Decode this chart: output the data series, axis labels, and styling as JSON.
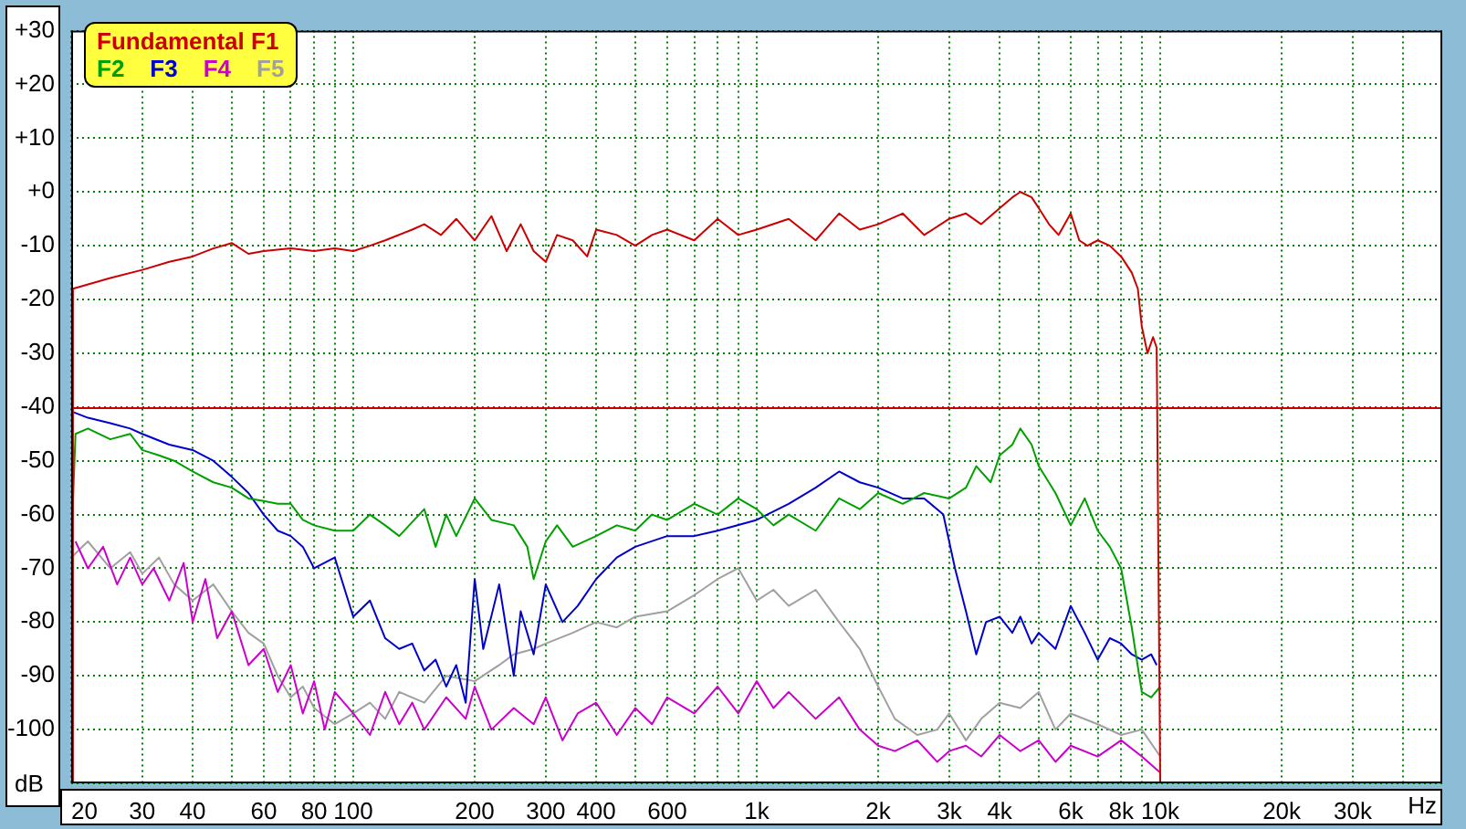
{
  "chart_data": {
    "type": "line",
    "xlabel": "Hz",
    "ylabel": "dB",
    "log": "x",
    "xlim": [
      20,
      50000
    ],
    "ylim": [
      -110,
      30
    ],
    "xticks": [
      20,
      30,
      40,
      {
        "value": 50,
        "label": null
      },
      60,
      {
        "value": 70,
        "label": null
      },
      80,
      {
        "value": 90,
        "label": null
      },
      100,
      200,
      300,
      400,
      {
        "value": 500,
        "label": null
      },
      600,
      {
        "value": 700,
        "label": null
      },
      {
        "value": 800,
        "label": null
      },
      {
        "value": 900,
        "label": null
      },
      {
        "value": 1000,
        "label": "1k"
      },
      {
        "value": 2000,
        "label": "2k"
      },
      {
        "value": 3000,
        "label": "3k"
      },
      {
        "value": 4000,
        "label": "4k"
      },
      {
        "value": 5000,
        "label": null
      },
      {
        "value": 6000,
        "label": "6k"
      },
      {
        "value": 7000,
        "label": null
      },
      {
        "value": 8000,
        "label": "8k"
      },
      {
        "value": 9000,
        "label": null
      },
      {
        "value": 10000,
        "label": "10k"
      },
      {
        "value": 20000,
        "label": "20k"
      },
      {
        "value": 30000,
        "label": "30k"
      },
      {
        "value": 40000,
        "label": null
      }
    ],
    "yticks": [
      {
        "value": 30,
        "label": "+30"
      },
      {
        "value": 20,
        "label": "+20"
      },
      {
        "value": 10,
        "label": "+10"
      },
      {
        "value": 0,
        "label": "+0"
      },
      -10,
      -20,
      -30,
      -40,
      -50,
      -60,
      -70,
      -80,
      -90,
      -100,
      {
        "value": -110,
        "label": null
      }
    ],
    "grid": true,
    "legend": "top left",
    "marker": "none",
    "line_style": "solid",
    "ref_lines": [
      {
        "axis": "y",
        "value": -40,
        "color": "#cc0000"
      }
    ],
    "series": [
      {
        "name": "Fundamental F1",
        "color": "#cc0000",
        "x": [
          20,
          20.2,
          25,
          30,
          35,
          40,
          45,
          50,
          55,
          60,
          70,
          80,
          90,
          100,
          110,
          120,
          140,
          150,
          165,
          180,
          200,
          220,
          240,
          260,
          280,
          300,
          320,
          350,
          380,
          400,
          450,
          500,
          550,
          600,
          700,
          800,
          900,
          1000,
          1200,
          1400,
          1600,
          1800,
          2000,
          2300,
          2600,
          3000,
          3300,
          3600,
          4000,
          4300,
          4500,
          4800,
          5000,
          5300,
          5600,
          6000,
          6300,
          6600,
          7000,
          7500,
          8000,
          8500,
          8800,
          9000,
          9300,
          9600,
          9800,
          10000
        ],
        "values": [
          -110,
          -18,
          -16,
          -14.5,
          -13,
          -12,
          -10.5,
          -9.5,
          -11.5,
          -11,
          -10.5,
          -11,
          -10.5,
          -11,
          -10,
          -9,
          -7,
          -6,
          -8,
          -5,
          -9,
          -4.5,
          -11,
          -6,
          -11,
          -13,
          -8,
          -9,
          -12,
          -7,
          -8,
          -10,
          -8,
          -7,
          -9,
          -5,
          -8,
          -7,
          -5,
          -9,
          -4,
          -7,
          -6,
          -4,
          -8,
          -5,
          -4,
          -6,
          -3,
          -1,
          0,
          -1,
          -3,
          -6,
          -8,
          -4,
          -9,
          -10,
          -9,
          -10,
          -12,
          -15,
          -18,
          -25,
          -30,
          -27,
          -29,
          -110
        ]
      },
      {
        "name": "F2",
        "color": "#00a000",
        "x": [
          20,
          20.5,
          22,
          25,
          28,
          30,
          33,
          36,
          40,
          45,
          50,
          55,
          60,
          65,
          70,
          75,
          80,
          90,
          100,
          110,
          120,
          130,
          150,
          160,
          170,
          180,
          200,
          220,
          250,
          270,
          280,
          300,
          320,
          350,
          400,
          450,
          500,
          550,
          600,
          700,
          800,
          900,
          1000,
          1100,
          1200,
          1400,
          1600,
          1800,
          2000,
          2300,
          2600,
          3000,
          3300,
          3500,
          3800,
          4000,
          4300,
          4500,
          4800,
          5000,
          5500,
          6000,
          6500,
          7000,
          7500,
          8000,
          8500,
          9000,
          9500,
          10000
        ],
        "values": [
          -66,
          -45,
          -44,
          -46,
          -45,
          -48,
          -49,
          -50,
          -52,
          -54,
          -55,
          -57,
          -57.5,
          -58,
          -58,
          -61,
          -62,
          -63,
          -63,
          -60,
          -62,
          -64,
          -59,
          -66,
          -60,
          -64,
          -57,
          -61,
          -62,
          -66,
          -72,
          -65,
          -62,
          -66,
          -64,
          -62,
          -63,
          -60,
          -61,
          -58,
          -60,
          -57,
          -59,
          -62,
          -60,
          -63,
          -57,
          -59,
          -56,
          -58,
          -56,
          -57,
          -55,
          -51,
          -54,
          -49,
          -47,
          -44,
          -47,
          -51,
          -56,
          -62,
          -57,
          -63,
          -66,
          -70,
          -81,
          -93,
          -94,
          -92
        ]
      },
      {
        "name": "F3",
        "color": "#0000cc",
        "x": [
          20.3,
          22,
          25,
          28,
          30,
          35,
          40,
          45,
          50,
          55,
          60,
          65,
          70,
          75,
          80,
          90,
          100,
          110,
          120,
          130,
          140,
          150,
          160,
          170,
          180,
          190,
          200,
          210,
          230,
          250,
          260,
          280,
          300,
          330,
          360,
          400,
          450,
          500,
          600,
          700,
          800,
          1000,
          1200,
          1400,
          1600,
          1800,
          2000,
          2300,
          2600,
          2900,
          3100,
          3300,
          3500,
          3700,
          4000,
          4300,
          4500,
          4800,
          5000,
          5500,
          6000,
          6500,
          7000,
          7500,
          8000,
          8500,
          9000,
          9500,
          9800
        ],
        "values": [
          -41,
          -42,
          -43,
          -44,
          -45,
          -47,
          -48,
          -50,
          -53,
          -56,
          -60,
          -63,
          -64,
          -66,
          -70,
          -68,
          -79,
          -76,
          -83,
          -85,
          -84,
          -89,
          -87,
          -92,
          -88,
          -95,
          -72,
          -85,
          -73,
          -90,
          -78,
          -86,
          -73,
          -80,
          -77,
          -72,
          -68,
          -66,
          -64,
          -64,
          -63,
          -61,
          -58,
          -55,
          -52,
          -54,
          -55,
          -57,
          -57,
          -60,
          -70,
          -78,
          -86,
          -80,
          -79,
          -82,
          -79,
          -84,
          -82,
          -85,
          -77,
          -82,
          -87,
          -83,
          -84,
          -86,
          -87,
          -86,
          -88
        ]
      },
      {
        "name": "F4",
        "color": "#cc00cc",
        "x": [
          20.5,
          22,
          24,
          26,
          28,
          30,
          32,
          35,
          38,
          40,
          43,
          46,
          50,
          55,
          60,
          65,
          70,
          75,
          80,
          85,
          90,
          100,
          110,
          120,
          130,
          140,
          150,
          170,
          190,
          200,
          220,
          250,
          280,
          300,
          330,
          360,
          400,
          450,
          500,
          550,
          600,
          700,
          800,
          900,
          1000,
          1100,
          1200,
          1400,
          1600,
          1800,
          2000,
          2200,
          2500,
          2800,
          3000,
          3300,
          3600,
          4000,
          4500,
          5000,
          5500,
          6000,
          7000,
          8000,
          9000,
          10000
        ],
        "values": [
          -65,
          -70,
          -66,
          -73,
          -68,
          -73,
          -70,
          -76,
          -69,
          -80,
          -72,
          -83,
          -78,
          -88,
          -85,
          -93,
          -88,
          -97,
          -91,
          -100,
          -93,
          -97,
          -101,
          -93,
          -99,
          -95,
          -100,
          -94,
          -98,
          -92,
          -100,
          -96,
          -99,
          -94,
          -102,
          -97,
          -95,
          -101,
          -96,
          -99,
          -94,
          -97,
          -92,
          -97,
          -91,
          -96,
          -93,
          -98,
          -94,
          -100,
          -103,
          -104,
          -102,
          -106,
          -104,
          -103,
          -105,
          -101,
          -104,
          -102,
          -106,
          -103,
          -105,
          -102,
          -105,
          -108
        ]
      },
      {
        "name": "F5",
        "color": "#a0a0a0",
        "x": [
          20,
          22,
          25,
          28,
          30,
          33,
          36,
          40,
          45,
          50,
          55,
          60,
          65,
          70,
          75,
          80,
          90,
          100,
          110,
          120,
          130,
          150,
          170,
          200,
          230,
          250,
          280,
          300,
          350,
          400,
          450,
          500,
          600,
          700,
          800,
          900,
          1000,
          1100,
          1200,
          1400,
          1600,
          1800,
          2000,
          2200,
          2500,
          2800,
          3000,
          3300,
          3600,
          4000,
          4500,
          5000,
          5500,
          6000,
          7000,
          8000,
          9000,
          10000
        ],
        "values": [
          -68,
          -65,
          -70,
          -67,
          -71,
          -68,
          -73,
          -76,
          -73,
          -78,
          -82,
          -84,
          -90,
          -94,
          -92,
          -96,
          -99,
          -97,
          -95,
          -98,
          -93,
          -95,
          -90,
          -91,
          -88,
          -86,
          -85,
          -84,
          -82,
          -80,
          -81,
          -79,
          -78,
          -75,
          -72,
          -70,
          -76,
          -74,
          -77,
          -74,
          -80,
          -85,
          -92,
          -98,
          -101,
          -100,
          -97,
          -102,
          -98,
          -95,
          -96,
          -93,
          -100,
          -97,
          -99,
          -101,
          -100,
          -105
        ]
      }
    ]
  }
}
